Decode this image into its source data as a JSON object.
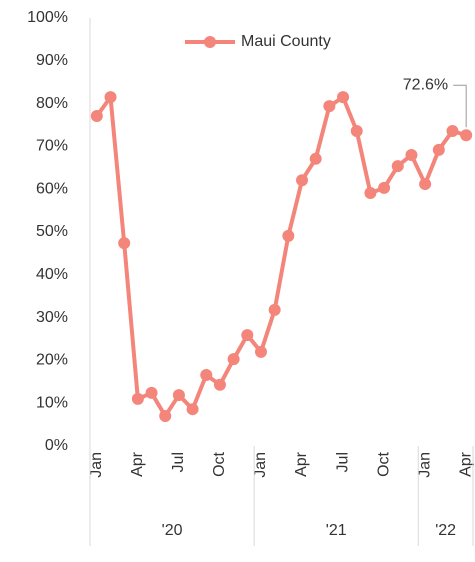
{
  "chart_data": {
    "type": "line",
    "categories": [
      "Jan",
      null,
      null,
      "Apr",
      null,
      null,
      "Jul",
      null,
      null,
      "Oct",
      null,
      null,
      "Jan",
      null,
      null,
      "Apr",
      null,
      null,
      "Jul",
      null,
      null,
      "Oct",
      null,
      null,
      "Jan",
      null,
      null,
      "Apr"
    ],
    "groups": [
      "'20",
      "'21",
      "'22"
    ],
    "series": [
      {
        "name": "Maui County",
        "color": "#f3857a",
        "values": [
          77.1,
          81.5,
          47.4,
          11.0,
          12.4,
          7.0,
          11.9,
          8.6,
          16.6,
          14.3,
          20.3,
          25.9,
          22.0,
          31.8,
          49.1,
          62.1,
          67.1,
          79.4,
          81.5,
          73.6,
          59.1,
          60.3,
          65.4,
          68.0,
          61.2,
          69.2,
          73.6,
          72.6
        ],
        "value_labels": [
          null,
          null,
          null,
          null,
          null,
          null,
          null,
          null,
          null,
          null,
          null,
          null,
          null,
          null,
          null,
          null,
          null,
          null,
          null,
          null,
          null,
          null,
          null,
          null,
          null,
          null,
          null,
          "72.6%"
        ]
      }
    ],
    "ylim": [
      0,
      100
    ],
    "yticks": [
      {
        "value": 0,
        "label": "0%"
      },
      {
        "value": 10,
        "label": "10%"
      },
      {
        "value": 20,
        "label": "20%"
      },
      {
        "value": 30,
        "label": "30%"
      },
      {
        "value": 40,
        "label": "40%"
      },
      {
        "value": 50,
        "label": "50%"
      },
      {
        "value": 60,
        "label": "60%"
      },
      {
        "value": 70,
        "label": "70%"
      },
      {
        "value": 80,
        "label": "80%"
      },
      {
        "value": 90,
        "label": "90%"
      },
      {
        "value": 100,
        "label": "100%"
      }
    ],
    "grid": false,
    "legend": "top"
  }
}
